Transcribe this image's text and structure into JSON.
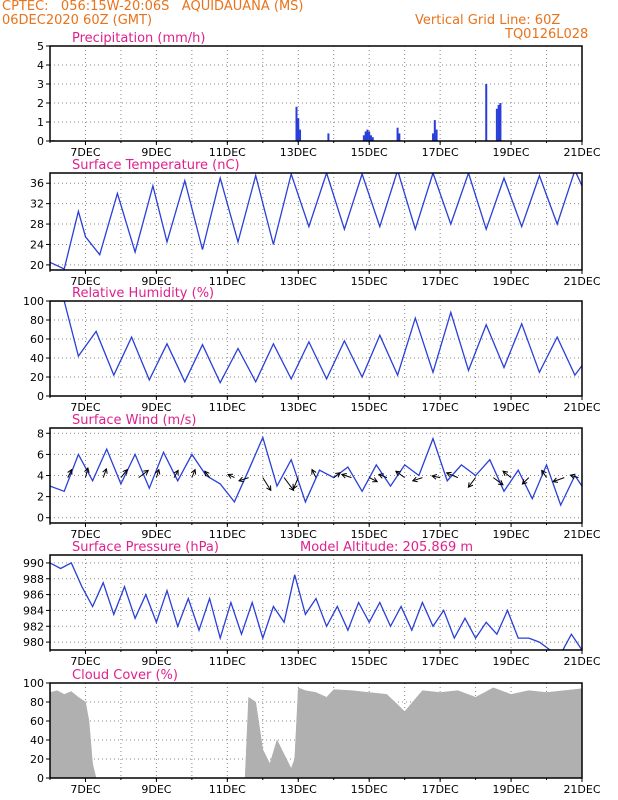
{
  "header": {
    "left_line1": "CPTEC:   056:15W-20:06S   AQUIDAUANA (MS)",
    "left_line2": "06DEC2020 60Z (GMT)",
    "right_line1": "Vertical Grid Line: 60Z",
    "right_line2": "TQ0126L028",
    "model_altitude": "Model Altitude: 205.869  m"
  },
  "colors": {
    "header": "#e8731c",
    "panel_title": "#e0208e",
    "line": "#2a3fd8",
    "cloud_fill": "#b0b0b0",
    "grid": "#888888"
  },
  "x_ticks": [
    "7DEC",
    "9DEC",
    "11DEC",
    "13DEC",
    "15DEC",
    "17DEC",
    "19DEC",
    "21DEC"
  ],
  "chart_data": [
    {
      "type": "bar",
      "title": "Precipitation (mm/h)",
      "ylim": [
        0,
        5
      ],
      "yticks": [
        0,
        1,
        2,
        3,
        4,
        5
      ],
      "x": [
        6.1,
        12.95,
        13.0,
        13.05,
        13.85,
        14.85,
        14.9,
        14.95,
        15.0,
        15.05,
        15.1,
        15.8,
        15.85,
        16.8,
        16.85,
        16.9,
        18.3,
        18.6,
        18.65,
        18.7
      ],
      "values": [
        0.05,
        1.8,
        1.2,
        0.6,
        0.4,
        0.3,
        0.5,
        0.6,
        0.5,
        0.3,
        0.2,
        0.7,
        0.4,
        0.4,
        1.1,
        0.6,
        3.0,
        1.7,
        1.9,
        2.0
      ]
    },
    {
      "type": "line",
      "title": "Surface Temperature (nC)",
      "ylim": [
        19,
        38
      ],
      "yticks": [
        20,
        24,
        28,
        32,
        36
      ],
      "x": [
        6.0,
        6.4,
        6.8,
        7.0,
        7.4,
        7.9,
        8.4,
        8.9,
        9.3,
        9.8,
        10.3,
        10.8,
        11.3,
        11.8,
        12.3,
        12.8,
        13.3,
        13.8,
        14.3,
        14.8,
        15.3,
        15.8,
        16.3,
        16.8,
        17.3,
        17.8,
        18.3,
        18.8,
        19.3,
        19.8,
        20.3,
        20.8,
        21.0
      ],
      "values": [
        20.5,
        19.2,
        30.5,
        25.5,
        22.0,
        34.0,
        22.5,
        35.5,
        24.5,
        36.5,
        23.0,
        37.0,
        24.5,
        37.5,
        24.0,
        37.8,
        27.5,
        38.0,
        27.0,
        37.8,
        27.5,
        38.5,
        27.0,
        38.0,
        28.0,
        38.0,
        27.0,
        37.0,
        27.5,
        37.5,
        28.0,
        38.5,
        35.5
      ]
    },
    {
      "type": "line",
      "title": "Relative Humidity (%)",
      "ylim": [
        0,
        100
      ],
      "yticks": [
        0,
        20,
        40,
        60,
        80,
        100
      ],
      "x": [
        6.0,
        6.4,
        6.8,
        7.3,
        7.8,
        8.3,
        8.8,
        9.3,
        9.8,
        10.3,
        10.8,
        11.3,
        11.8,
        12.3,
        12.8,
        13.3,
        13.8,
        14.3,
        14.8,
        15.3,
        15.8,
        16.3,
        16.8,
        17.3,
        17.8,
        18.3,
        18.8,
        19.3,
        19.8,
        20.3,
        20.8,
        21.0
      ],
      "values": [
        100,
        100,
        42,
        68,
        22,
        62,
        17,
        55,
        15,
        54,
        14,
        50,
        15,
        55,
        18,
        57,
        18,
        58,
        20,
        64,
        22,
        82,
        25,
        88,
        27,
        75,
        30,
        76,
        25,
        62,
        22,
        32
      ]
    },
    {
      "type": "line",
      "title": "Surface Wind (m/s)",
      "ylim": [
        -0.5,
        8.5
      ],
      "yticks": [
        0,
        2,
        4,
        6,
        8
      ],
      "x": [
        6.0,
        6.4,
        6.8,
        7.2,
        7.6,
        8.0,
        8.4,
        8.8,
        9.2,
        9.6,
        10.0,
        10.4,
        10.8,
        11.2,
        11.6,
        12.0,
        12.4,
        12.8,
        13.2,
        13.6,
        14.0,
        14.4,
        14.8,
        15.2,
        15.6,
        16.0,
        16.4,
        16.8,
        17.2,
        17.6,
        18.0,
        18.4,
        18.8,
        19.2,
        19.6,
        20.0,
        20.4,
        20.8,
        21.0
      ],
      "values": [
        3.0,
        2.5,
        6.0,
        3.5,
        6.5,
        3.2,
        6.0,
        2.8,
        6.2,
        3.5,
        6.0,
        4.0,
        3.2,
        1.5,
        4.5,
        7.6,
        3.0,
        5.5,
        1.5,
        4.5,
        3.8,
        4.8,
        2.5,
        5.0,
        3.0,
        5.0,
        4.0,
        7.5,
        3.5,
        5.0,
        4.0,
        5.5,
        2.5,
        4.5,
        1.8,
        5.0,
        1.2,
        4.0,
        3.0
      ],
      "vector_x": [
        6.5,
        7.0,
        7.5,
        8.0,
        8.5,
        9.0,
        9.5,
        10.0,
        10.5,
        11.2,
        11.6,
        12.0,
        12.6,
        13.0,
        13.5,
        14.0,
        14.5,
        15.0,
        15.5,
        16.0,
        16.5,
        17.0,
        17.5,
        18.0,
        18.5,
        19.0,
        19.5,
        20.0,
        20.5,
        20.9
      ],
      "vector_u": [
        0.5,
        0.3,
        0.4,
        0.8,
        1.2,
        0.3,
        0.5,
        0.4,
        -0.6,
        -0.8,
        -1.2,
        1.0,
        1.2,
        -0.6,
        -0.5,
        0.8,
        -1.2,
        1.0,
        -1.0,
        -1.1,
        -1.2,
        -1.0,
        -1.4,
        -0.9,
        1.2,
        -1.0,
        -0.8,
        -0.6,
        -1.4,
        -1.0
      ],
      "vector_v": [
        1.0,
        1.2,
        1.1,
        1.0,
        0.9,
        1.0,
        0.9,
        1.0,
        0.8,
        0.4,
        -0.4,
        -1.6,
        -1.6,
        -1.4,
        1.0,
        0.6,
        0.4,
        -0.5,
        0.4,
        0.8,
        -0.4,
        0.2,
        0.6,
        -1.2,
        -0.9,
        0.8,
        -0.8,
        0.9,
        -0.5,
        0.3
      ]
    },
    {
      "type": "line",
      "title": "Surface Pressure (hPa)",
      "ylim": [
        979,
        991
      ],
      "yticks": [
        980,
        982,
        984,
        986,
        988,
        990
      ],
      "x": [
        6.0,
        6.3,
        6.6,
        6.9,
        7.2,
        7.5,
        7.8,
        8.1,
        8.4,
        8.7,
        9.0,
        9.3,
        9.6,
        9.9,
        10.2,
        10.5,
        10.8,
        11.1,
        11.4,
        11.7,
        12.0,
        12.3,
        12.6,
        12.9,
        13.2,
        13.5,
        13.8,
        14.1,
        14.4,
        14.7,
        15.0,
        15.3,
        15.6,
        15.9,
        16.2,
        16.5,
        16.8,
        17.1,
        17.4,
        17.7,
        18.0,
        18.3,
        18.6,
        18.9,
        19.2,
        19.5,
        19.8,
        20.1,
        20.4,
        20.7,
        21.0
      ],
      "values": [
        990.0,
        989.3,
        990.0,
        987.0,
        984.5,
        987.5,
        983.5,
        987.0,
        983.0,
        986.0,
        982.5,
        986.5,
        982.0,
        985.5,
        981.5,
        985.5,
        980.5,
        985.0,
        981.0,
        985.0,
        980.5,
        984.5,
        982.5,
        988.5,
        983.5,
        985.5,
        982.0,
        984.5,
        981.5,
        985.0,
        982.5,
        985.0,
        982.0,
        984.5,
        981.5,
        985.0,
        982.0,
        984.0,
        980.5,
        983.0,
        980.5,
        982.5,
        981.0,
        984.0,
        980.5,
        980.5,
        980.0,
        979.0,
        978.5,
        981.0,
        979.0
      ]
    },
    {
      "type": "area",
      "title": "Cloud Cover (%)",
      "ylim": [
        0,
        100
      ],
      "yticks": [
        0,
        20,
        40,
        60,
        80,
        100
      ],
      "x": [
        6.0,
        6.2,
        6.4,
        6.6,
        6.8,
        7.0,
        7.1,
        7.2,
        7.3,
        11.5,
        11.6,
        11.8,
        12.0,
        12.2,
        12.4,
        12.6,
        12.8,
        12.9,
        13.0,
        13.2,
        13.5,
        13.8,
        14.0,
        14.5,
        15.0,
        15.5,
        16.0,
        16.5,
        17.0,
        17.5,
        18.0,
        18.5,
        19.0,
        19.5,
        20.0,
        20.5,
        21.0
      ],
      "values": [
        90,
        92,
        88,
        91,
        85,
        80,
        60,
        15,
        0,
        0,
        85,
        80,
        30,
        15,
        40,
        25,
        10,
        20,
        95,
        92,
        90,
        85,
        93,
        92,
        90,
        88,
        70,
        92,
        90,
        92,
        85,
        95,
        88,
        92,
        90,
        92,
        94
      ]
    }
  ],
  "cloud_x_start": 6.0
}
